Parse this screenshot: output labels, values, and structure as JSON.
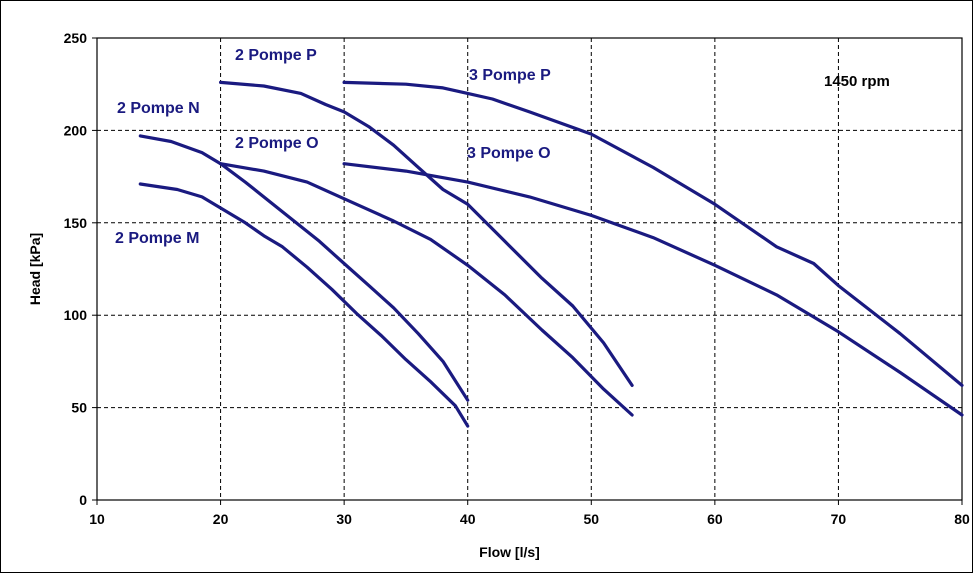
{
  "chart_data": {
    "type": "line",
    "title": "",
    "xlabel": "Flow [l/s]",
    "ylabel": "Head [kPa]",
    "xlim": [
      10,
      80
    ],
    "ylim": [
      0,
      250
    ],
    "xticks": [
      "10",
      "20",
      "30",
      "40",
      "50",
      "60",
      "70",
      "80"
    ],
    "yticks": [
      "0",
      "50",
      "100",
      "150",
      "200",
      "250"
    ],
    "grid": true,
    "legend": "none",
    "line_color": "#1a1a80",
    "annotation": "1450 rpm",
    "series": [
      {
        "name": "2 Pompe M",
        "points": [
          [
            13.5,
            171
          ],
          [
            16.5,
            168
          ],
          [
            18.5,
            164
          ],
          [
            20,
            158
          ],
          [
            22,
            150
          ],
          [
            23.5,
            143
          ],
          [
            25,
            137
          ],
          [
            27,
            126
          ],
          [
            29,
            114
          ],
          [
            31,
            101
          ],
          [
            33,
            89
          ],
          [
            35,
            76
          ],
          [
            37,
            64
          ],
          [
            39,
            51
          ],
          [
            40,
            40
          ]
        ]
      },
      {
        "name": "2 Pompe N",
        "points": [
          [
            13.5,
            197
          ],
          [
            16,
            194
          ],
          [
            18.5,
            188
          ],
          [
            20,
            182
          ],
          [
            22,
            172
          ],
          [
            25,
            156
          ],
          [
            28,
            140
          ],
          [
            30,
            128
          ],
          [
            32,
            116
          ],
          [
            34,
            104
          ],
          [
            36,
            90
          ],
          [
            38,
            75
          ],
          [
            40,
            54
          ]
        ]
      },
      {
        "name": "2 Pompe O",
        "points": [
          [
            20,
            182
          ],
          [
            23.5,
            178
          ],
          [
            27,
            172
          ],
          [
            29,
            166
          ],
          [
            31,
            160
          ],
          [
            34,
            151
          ],
          [
            37,
            141
          ],
          [
            40,
            127
          ],
          [
            43,
            111
          ],
          [
            46,
            92
          ],
          [
            48.5,
            77
          ],
          [
            51,
            60
          ],
          [
            53.3,
            46
          ]
        ]
      },
      {
        "name": "2 Pompe P",
        "points": [
          [
            20,
            226
          ],
          [
            23.5,
            224
          ],
          [
            26.5,
            220
          ],
          [
            28.5,
            214
          ],
          [
            30,
            210
          ],
          [
            32,
            202
          ],
          [
            34,
            192
          ],
          [
            36,
            180
          ],
          [
            38,
            168
          ],
          [
            40,
            160
          ],
          [
            43,
            140
          ],
          [
            46,
            120
          ],
          [
            48.5,
            105
          ],
          [
            51,
            85
          ],
          [
            53.3,
            62
          ]
        ]
      },
      {
        "name": "3 Pompe O",
        "points": [
          [
            30,
            182
          ],
          [
            35,
            178
          ],
          [
            40,
            172
          ],
          [
            45,
            164
          ],
          [
            50,
            154
          ],
          [
            55,
            142
          ],
          [
            60,
            127
          ],
          [
            65,
            111
          ],
          [
            70,
            91
          ],
          [
            75,
            69
          ],
          [
            80,
            46
          ]
        ]
      },
      {
        "name": "3 Pompe P",
        "points": [
          [
            30,
            226
          ],
          [
            35,
            225
          ],
          [
            38,
            223
          ],
          [
            40,
            220
          ],
          [
            42,
            217
          ],
          [
            45,
            210
          ],
          [
            50,
            198
          ],
          [
            55,
            180
          ],
          [
            60,
            160
          ],
          [
            65,
            137
          ],
          [
            68,
            128
          ],
          [
            70,
            116
          ],
          [
            75,
            90
          ],
          [
            80,
            62
          ]
        ]
      }
    ],
    "labels": [
      {
        "text": "2 Pompe M",
        "series": "2 Pompe M"
      },
      {
        "text": "2 Pompe N",
        "series": "2 Pompe N"
      },
      {
        "text": "2 Pompe O",
        "series": "2 Pompe O"
      },
      {
        "text": "2 Pompe P",
        "series": "2 Pompe P"
      },
      {
        "text": "3 Pompe O",
        "series": "3 Pompe O"
      },
      {
        "text": "3 Pompe P",
        "series": "3 Pompe P"
      }
    ]
  }
}
